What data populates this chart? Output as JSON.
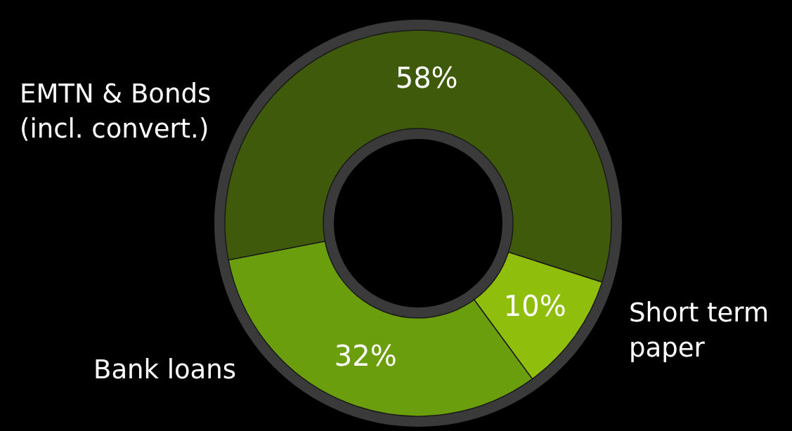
{
  "chart_data": {
    "type": "donut",
    "categories": [
      "EMTN & Bonds\n(incl. convert.)",
      "Short term\npaper",
      "Bank loans"
    ],
    "values": [
      58,
      10,
      32
    ],
    "colors": [
      "#3f5a0a",
      "#8fbf0c",
      "#6a9e0c"
    ],
    "value_labels": [
      "58%",
      "10%",
      "32%"
    ]
  }
}
